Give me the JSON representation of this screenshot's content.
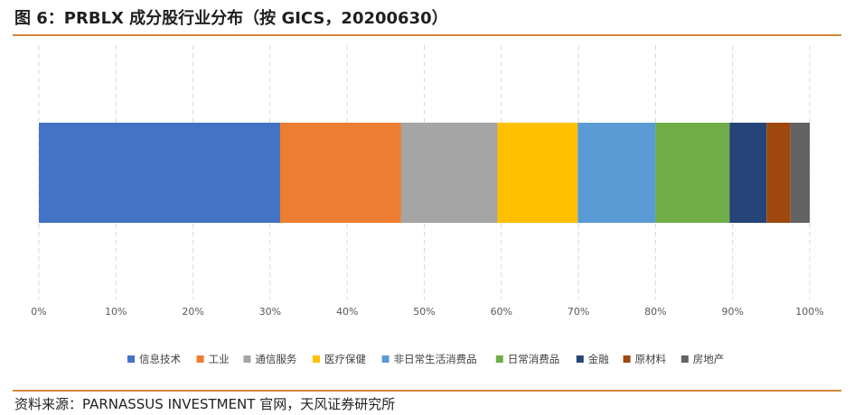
{
  "title": "图 6：PRBLX 成分股行业分布（按 GICS，20200630）",
  "source": "资料来源：PARNASSUS INVESTMENT 官网，天风证券研究所",
  "chart_data": {
    "type": "bar",
    "orientation": "horizontal",
    "stacked": true,
    "title": "",
    "xlabel": "",
    "ylabel": "",
    "xlim": [
      0,
      100
    ],
    "x_ticks": [
      "0%",
      "10%",
      "20%",
      "30%",
      "40%",
      "50%",
      "60%",
      "70%",
      "80%",
      "90%",
      "100%"
    ],
    "grid": "vertical dashed",
    "legend_position": "bottom",
    "series": [
      {
        "name": "信息技术",
        "value": 31.3,
        "color": "#4472c4"
      },
      {
        "name": "工业",
        "value": 15.7,
        "color": "#ed7d31"
      },
      {
        "name": "通信服务",
        "value": 12.5,
        "color": "#a5a5a5"
      },
      {
        "name": "医疗保健",
        "value": 10.4,
        "color": "#ffc000"
      },
      {
        "name": "非日常生活消费品",
        "value": 10.1,
        "color": "#5b9bd5"
      },
      {
        "name": "日常消费品",
        "value": 9.6,
        "color": "#70ad47"
      },
      {
        "name": "金融",
        "value": 4.8,
        "color": "#264478"
      },
      {
        "name": "原材料",
        "value": 3.1,
        "color": "#9e480e"
      },
      {
        "name": "房地产",
        "value": 2.5,
        "color": "#636363"
      }
    ]
  }
}
